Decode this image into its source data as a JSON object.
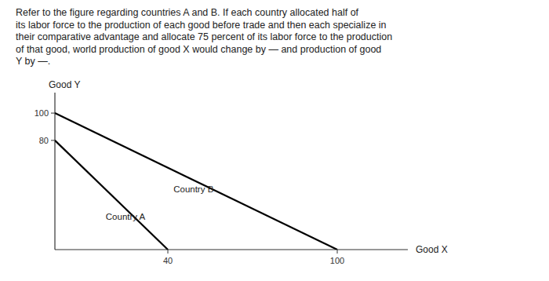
{
  "chart_data": {
    "type": "line",
    "title": "Refer to the figure regarding countries A and B. If each country allocated half of\nits labor force to the production of each good before trade and then each specialize in\ntheir comparative advantage and allocate 75 percent of its labor force to the production\nof that good, world production of good X would change by — and production of good\nY by —.",
    "x_label": "Good X",
    "y_label": "Good Y",
    "series": [
      {
        "x": [
          0,
          40
        ],
        "values": [
          80,
          0
        ],
        "color": "black"
      },
      {
        "x": [
          0,
          100
        ],
        "values": [
          100,
          0
        ],
        "color": "black"
      }
    ],
    "annotations": [
      {
        "text": "Country A",
        "x": 18,
        "y": 22
      },
      {
        "text": "Country B",
        "x": 42,
        "y": 42
      }
    ],
    "xlim": [
      0,
      125
    ],
    "ylim": [
      0,
      115
    ],
    "xticks": [
      40,
      100
    ],
    "yticks": [
      80,
      100
    ],
    "grid": false
  }
}
